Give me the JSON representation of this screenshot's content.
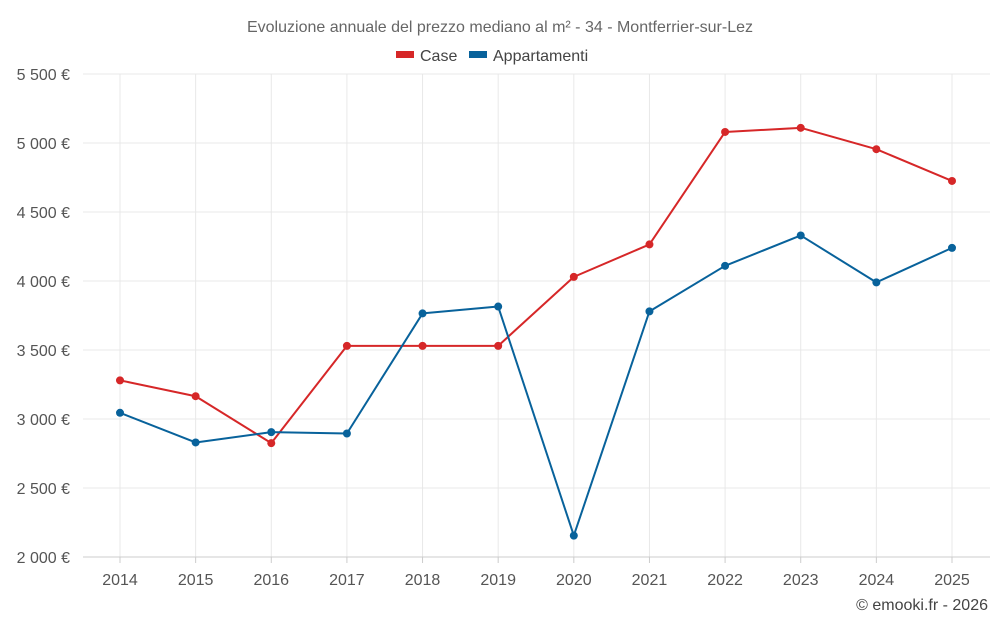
{
  "chart_data": {
    "type": "line",
    "title": "Evoluzione annuale del prezzo mediano al m² - 34 - Montferrier-sur-Lez",
    "categories": [
      "2014",
      "2015",
      "2016",
      "2017",
      "2018",
      "2019",
      "2020",
      "2021",
      "2022",
      "2023",
      "2024",
      "2025"
    ],
    "series": [
      {
        "name": "Case",
        "color": "#d62728",
        "values": [
          3280,
          3165,
          2825,
          3530,
          3530,
          3530,
          4030,
          4265,
          5080,
          5110,
          4955,
          4725
        ]
      },
      {
        "name": "Appartamenti",
        "color": "#08629b",
        "values": [
          3045,
          2830,
          2905,
          2895,
          3765,
          3815,
          2155,
          3780,
          4110,
          4330,
          3990,
          4240
        ]
      }
    ],
    "ylim": [
      2000,
      5500
    ],
    "yticks": [
      2000,
      2500,
      3000,
      3500,
      4000,
      4500,
      5000,
      5500
    ],
    "ytick_labels": [
      "2 000 €",
      "2 500 €",
      "3 000 €",
      "3 500 €",
      "4 000 €",
      "4 500 €",
      "5 000 €",
      "5 500 €"
    ],
    "grid": true,
    "legend_position": "top-center",
    "xlabel": "",
    "ylabel": ""
  },
  "credit": "© emooki.fr - 2026"
}
